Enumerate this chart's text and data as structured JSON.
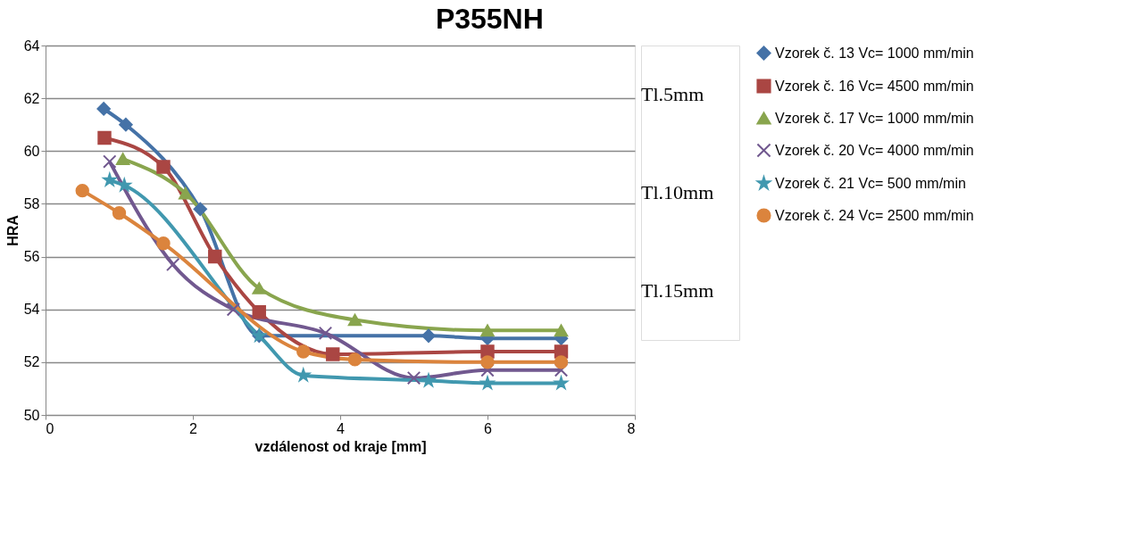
{
  "chart_data": {
    "type": "line",
    "title": "P355NH",
    "xlabel": "vzdálenost od kraje [mm]",
    "ylabel": "HRA",
    "xlim": [
      0,
      8
    ],
    "xticks": [
      0,
      2,
      4,
      6,
      8
    ],
    "ylim": [
      50,
      64
    ],
    "yticks": [
      50,
      52,
      54,
      56,
      58,
      60,
      62,
      64
    ],
    "grid": "y",
    "legend": "right",
    "line_style": "solid",
    "annotations": [
      "Tl.5mm",
      "Tl.10mm",
      "Tl.15mm"
    ],
    "series": [
      {
        "name": "Vzorek č. 13 Vc= 1000 mm/min",
        "color": "#4572a7",
        "marker": "diamond",
        "x": [
          0.79,
          1.09,
          2.1,
          2.9,
          5.2,
          6.0,
          7.0
        ],
        "values": [
          61.6,
          61.0,
          57.8,
          53.0,
          53.0,
          52.9,
          52.9
        ]
      },
      {
        "name": "Vzorek č. 16 Vc= 4500 mm/min",
        "color": "#aa4643",
        "marker": "square",
        "x": [
          0.8,
          1.6,
          2.3,
          2.9,
          3.9,
          6.0,
          7.0
        ],
        "values": [
          60.5,
          59.4,
          56.0,
          53.9,
          52.3,
          52.4,
          52.4
        ]
      },
      {
        "name": "Vzorek č. 17 Vc= 1000 mm/min",
        "color": "#89a54e",
        "marker": "triangle",
        "x": [
          1.05,
          1.9,
          2.9,
          4.2,
          6.0,
          7.0
        ],
        "values": [
          59.7,
          58.4,
          54.8,
          53.6,
          53.2,
          53.2
        ]
      },
      {
        "name": "Vzorek č. 20 Vc= 4000 mm/min",
        "color": "#71588f",
        "marker": "cross",
        "x": [
          0.87,
          1.73,
          2.55,
          3.8,
          5.0,
          6.0,
          7.0
        ],
        "values": [
          59.6,
          55.7,
          54.0,
          53.1,
          51.4,
          51.7,
          51.7
        ]
      },
      {
        "name": "Vzorek č. 21 Vc= 500 mm/min",
        "color": "#4198af",
        "marker": "star",
        "x": [
          0.87,
          1.07,
          2.9,
          3.5,
          5.2,
          6.0,
          7.0
        ],
        "values": [
          58.9,
          58.7,
          53.0,
          51.5,
          51.3,
          51.2,
          51.2
        ]
      },
      {
        "name": "Vzorek č. 24 Vc= 2500 mm/min",
        "color": "#db843d",
        "marker": "circle",
        "x": [
          0.5,
          1.0,
          1.6,
          3.5,
          4.2,
          6.0,
          7.0
        ],
        "values": [
          58.5,
          57.65,
          56.5,
          52.4,
          52.1,
          52.0,
          52.0
        ]
      }
    ]
  }
}
